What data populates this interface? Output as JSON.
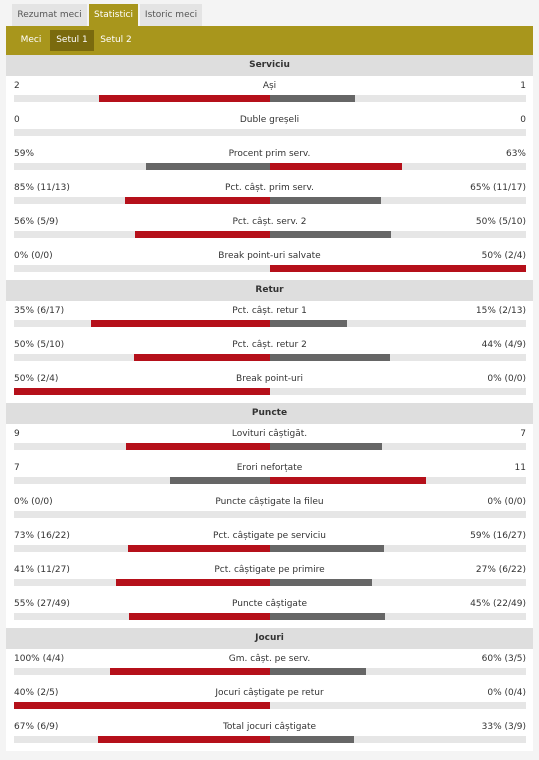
{
  "tabs": [
    "Rezumat meci",
    "Statistici",
    "Istoric meci"
  ],
  "subtabs": [
    "Meci",
    "Setul 1",
    "Setul 2"
  ],
  "sections": [
    {
      "title": "Serviciu",
      "rows": [
        {
          "home": "2",
          "label": "Ași",
          "away": "1"
        },
        {
          "home": "0",
          "label": "Duble greșeli",
          "away": "0"
        },
        {
          "home": "59%",
          "label": "Procent prim serv.",
          "away": "63%"
        },
        {
          "home": "85% (11/13)",
          "label": "Pct. câșt. prim serv.",
          "away": "65% (11/17)"
        },
        {
          "home": "56% (5/9)",
          "label": "Pct. câșt. serv. 2",
          "away": "50% (5/10)"
        },
        {
          "home": "0% (0/0)",
          "label": "Break point-uri salvate",
          "away": "50% (2/4)"
        }
      ]
    },
    {
      "title": "Retur",
      "rows": [
        {
          "home": "35% (6/17)",
          "label": "Pct. câșt. retur 1",
          "away": "15% (2/13)"
        },
        {
          "home": "50% (5/10)",
          "label": "Pct. câșt. retur 2",
          "away": "44% (4/9)"
        },
        {
          "home": "50% (2/4)",
          "label": "Break point-uri",
          "away": "0% (0/0)"
        }
      ]
    },
    {
      "title": "Puncte",
      "rows": [
        {
          "home": "9",
          "label": "Lovituri câștigăt.",
          "away": "7"
        },
        {
          "home": "7",
          "label": "Erori neforțate",
          "away": "11"
        },
        {
          "home": "0% (0/0)",
          "label": "Puncte câștigate la fileu",
          "away": "0% (0/0)"
        },
        {
          "home": "73% (16/22)",
          "label": "Pct. câștigate pe serviciu",
          "away": "59% (16/27)"
        },
        {
          "home": "41% (11/27)",
          "label": "Pct. câștigate pe primire",
          "away": "27% (6/22)"
        },
        {
          "home": "55% (27/49)",
          "label": "Puncte câștigate",
          "away": "45% (22/49)"
        }
      ]
    },
    {
      "title": "Jocuri",
      "rows": [
        {
          "home": "100% (4/4)",
          "label": "Gm. câșt. pe serv.",
          "away": "60% (3/5)"
        },
        {
          "home": "40% (2/5)",
          "label": "Jocuri câștigate pe retur",
          "away": "0% (0/4)"
        },
        {
          "home": "67% (6/9)",
          "label": "Total jocuri câștigate",
          "away": "33% (3/9)"
        }
      ]
    }
  ]
}
